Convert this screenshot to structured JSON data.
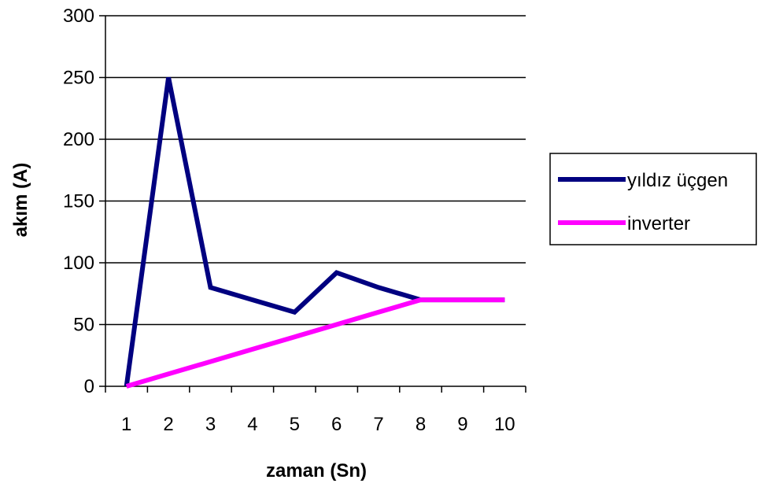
{
  "chart_data": {
    "type": "line",
    "title": "",
    "xlabel": "zaman (Sn)",
    "ylabel": "akım (A)",
    "categories": [
      "1",
      "2",
      "3",
      "4",
      "5",
      "6",
      "7",
      "8",
      "9",
      "10"
    ],
    "ylim": [
      0,
      300
    ],
    "yticks": [
      0,
      50,
      100,
      150,
      200,
      250,
      300
    ],
    "grid": true,
    "legend_position": "right",
    "series": [
      {
        "name": "yıldız üçgen",
        "color": "#000080",
        "values": [
          0,
          250,
          80,
          70,
          60,
          92,
          80,
          70,
          70,
          70
        ]
      },
      {
        "name": "inverter",
        "color": "#ff00ff",
        "values": [
          0,
          10,
          20,
          30,
          40,
          50,
          60,
          70,
          70,
          70
        ]
      }
    ]
  }
}
